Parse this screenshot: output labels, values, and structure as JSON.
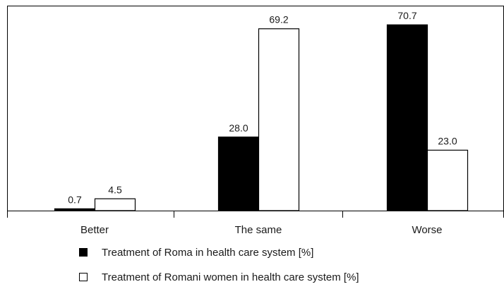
{
  "chart_data": {
    "type": "bar",
    "categories": [
      "Better",
      "The same",
      "Worse"
    ],
    "series": [
      {
        "name": "Treatment of Roma in health care system [%]",
        "values": [
          0.7,
          28.0,
          70.7
        ],
        "color": "#000000"
      },
      {
        "name": "Treatment of Romani women in health care system [%]",
        "values": [
          4.5,
          69.2,
          23.0
        ],
        "color": "#ffffff"
      }
    ],
    "data_labels": [
      [
        "0.7",
        "28.0",
        "70.7"
      ],
      [
        "4.5",
        "69.2",
        "23.0"
      ]
    ],
    "ylim": [
      0,
      78
    ],
    "grid": false,
    "legend_position": "bottom"
  }
}
